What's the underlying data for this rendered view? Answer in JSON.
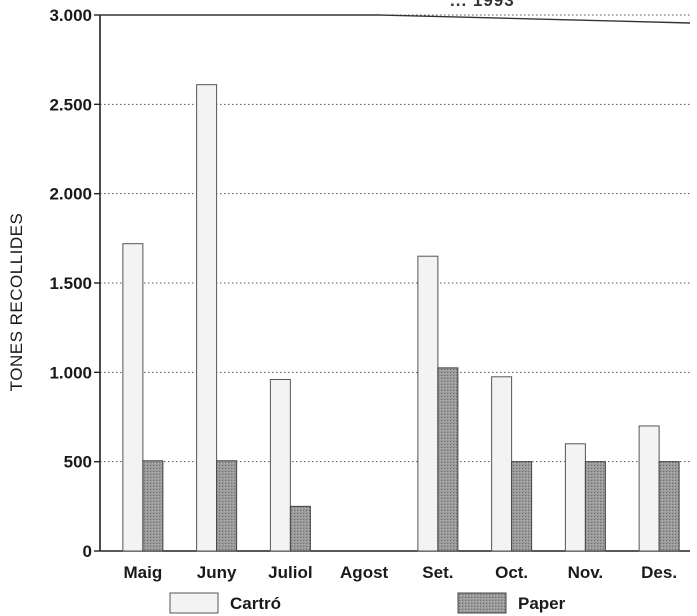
{
  "title_fragment": "... 1993",
  "chart_data": {
    "type": "bar",
    "ylabel": "TONES RECOLLIDES",
    "xlabel": "",
    "ylim": [
      0,
      3000
    ],
    "yticks": [
      0,
      500,
      1000,
      1500,
      2000,
      2500,
      3000
    ],
    "ytick_labels": [
      "0",
      "500",
      "1.000",
      "1.500",
      "2.000",
      "2.500",
      "3.000"
    ],
    "grid": "horizontal-dotted",
    "legend_placement": "bottom",
    "categories": [
      "Maig",
      "Juny",
      "Juliol",
      "Agost",
      "Set.",
      "Oct.",
      "Nov.",
      "Des."
    ],
    "series": [
      {
        "name": "Cartró",
        "color": "#f2f2f2",
        "values": [
          1720,
          2610,
          960,
          0,
          1650,
          975,
          600,
          700
        ]
      },
      {
        "name": "Paper",
        "color": "#8c8c8c",
        "values": [
          505,
          505,
          250,
          0,
          1025,
          500,
          500,
          500
        ]
      }
    ]
  }
}
